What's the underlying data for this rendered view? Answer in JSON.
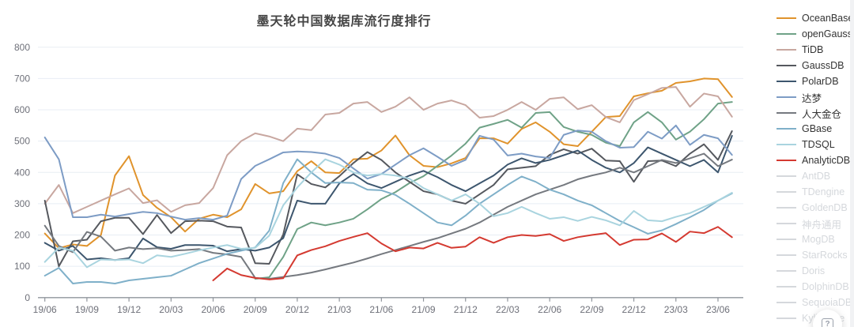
{
  "title": "墨天轮中国数据库流行度排行",
  "float_button": {
    "icon": "question-mark",
    "tooltip_glyph": "?"
  },
  "colors": {
    "grid": "#E8EDF4",
    "axis": "#8F949B",
    "tick_label": "#6E7079",
    "title": "#454545",
    "legend_active_text": "#333333",
    "legend_disabled": "#D5D8DC",
    "background": "#FFFFFF"
  },
  "legend": {
    "position": "right",
    "items": [
      {
        "label": "OceanBase",
        "color": "#E0932C",
        "active": true
      },
      {
        "label": "openGauss",
        "color": "#6FA287",
        "active": true
      },
      {
        "label": "TiDB",
        "color": "#C8A7A0",
        "active": true
      },
      {
        "label": "GaussDB",
        "color": "#55585E",
        "active": true
      },
      {
        "label": "PolarDB",
        "color": "#3D566E",
        "active": true
      },
      {
        "label": "达梦",
        "color": "#7D9CC5",
        "active": true
      },
      {
        "label": "人大金仓",
        "color": "#75797F",
        "active": true
      },
      {
        "label": "GBase",
        "color": "#7FB0C9",
        "active": true
      },
      {
        "label": "TDSQL",
        "color": "#A9D4DF",
        "active": true
      },
      {
        "label": "AnalyticDB",
        "color": "#D43A31",
        "active": true
      },
      {
        "label": "AntDB",
        "color": "#D5D8DC",
        "active": false
      },
      {
        "label": "TDengine",
        "color": "#D5D8DC",
        "active": false
      },
      {
        "label": "GoldenDB",
        "color": "#D5D8DC",
        "active": false
      },
      {
        "label": "神舟通用",
        "color": "#D5D8DC",
        "active": false
      },
      {
        "label": "MogDB",
        "color": "#D5D8DC",
        "active": false
      },
      {
        "label": "StarRocks",
        "color": "#D5D8DC",
        "active": false
      },
      {
        "label": "Doris",
        "color": "#D5D8DC",
        "active": false
      },
      {
        "label": "DolphinDB",
        "color": "#D5D8DC",
        "active": false
      },
      {
        "label": "SequoiaDB",
        "color": "#D5D8DC",
        "active": false
      },
      {
        "label": "Kyligence",
        "color": "#D5D8DC",
        "active": false
      }
    ]
  },
  "chart_data": {
    "type": "line",
    "title": "墨天轮中国数据库流行度排行",
    "xlabel": "",
    "ylabel": "",
    "ylim": [
      0,
      800
    ],
    "ytick_step": 100,
    "yticks": [
      0,
      100,
      200,
      300,
      400,
      500,
      600,
      700,
      800
    ],
    "grid": true,
    "legend_position": "right",
    "x_tick_labels_shown": [
      "19/06",
      "19/09",
      "19/12",
      "20/03",
      "20/06",
      "20/09",
      "20/12",
      "21/03",
      "21/06",
      "21/09",
      "21/12",
      "22/03",
      "22/06",
      "22/09",
      "22/12",
      "23/03",
      "23/06"
    ],
    "categories": [
      "19/06",
      "19/07",
      "19/08",
      "19/09",
      "19/10",
      "19/11",
      "19/12",
      "20/01",
      "20/02",
      "20/03",
      "20/04",
      "20/05",
      "20/06",
      "20/07",
      "20/08",
      "20/09",
      "20/10",
      "20/11",
      "20/12",
      "21/01",
      "21/02",
      "21/03",
      "21/04",
      "21/05",
      "21/06",
      "21/07",
      "21/08",
      "21/09",
      "21/10",
      "21/11",
      "21/12",
      "22/01",
      "22/02",
      "22/03",
      "22/04",
      "22/05",
      "22/06",
      "22/07",
      "22/08",
      "22/09",
      "22/10",
      "22/11",
      "22/12",
      "23/01",
      "23/02",
      "23/03",
      "23/04",
      "23/05",
      "23/06",
      "23/07"
    ],
    "series": [
      {
        "name": "OceanBase",
        "color": "#E0932C",
        "values": [
          205,
          158,
          170,
          165,
          200,
          390,
          452,
          328,
          287,
          257,
          211,
          252,
          265,
          257,
          282,
          363,
          333,
          340,
          404,
          436,
          400,
          398,
          442,
          444,
          470,
          518,
          455,
          421,
          417,
          429,
          446,
          509,
          509,
          492,
          539,
          560,
          530,
          490,
          484,
          530,
          577,
          580,
          643,
          653,
          661,
          686,
          691,
          700,
          698,
          641
        ]
      },
      {
        "name": "openGauss",
        "color": "#6FA287",
        "values": [
          null,
          null,
          null,
          null,
          null,
          null,
          null,
          null,
          null,
          null,
          null,
          null,
          null,
          null,
          null,
          60,
          65,
          130,
          219,
          240,
          231,
          240,
          252,
          282,
          315,
          337,
          366,
          388,
          421,
          454,
          492,
          543,
          555,
          568,
          543,
          590,
          593,
          545,
          530,
          520,
          495,
          484,
          560,
          593,
          560,
          505,
          530,
          570,
          620,
          625
        ]
      },
      {
        "name": "TiDB",
        "color": "#C8A7A0",
        "values": [
          300,
          360,
          270,
          290,
          310,
          330,
          349,
          302,
          311,
          274,
          295,
          302,
          350,
          455,
          500,
          525,
          515,
          500,
          540,
          535,
          585,
          590,
          620,
          625,
          593,
          610,
          640,
          600,
          620,
          630,
          615,
          575,
          580,
          600,
          625,
          600,
          635,
          640,
          602,
          615,
          577,
          560,
          631,
          650,
          670,
          673,
          610,
          652,
          643,
          578
        ]
      },
      {
        "name": "GaussDB",
        "color": "#55585E",
        "values": [
          310,
          100,
          180,
          185,
          244,
          255,
          255,
          203,
          264,
          206,
          244,
          246,
          244,
          227,
          224,
          110,
          108,
          202,
          394,
          363,
          352,
          388,
          430,
          465,
          440,
          400,
          370,
          340,
          330,
          310,
          300,
          330,
          360,
          410,
          415,
          420,
          456,
          474,
          460,
          476,
          438,
          436,
          370,
          436,
          438,
          420,
          460,
          490,
          440,
          532
        ]
      },
      {
        "name": "PolarDB",
        "color": "#3D566E",
        "values": [
          175,
          150,
          165,
          122,
          126,
          120,
          126,
          189,
          161,
          156,
          168,
          168,
          166,
          148,
          155,
          150,
          160,
          190,
          310,
          300,
          300,
          365,
          395,
          365,
          350,
          370,
          390,
          405,
          385,
          360,
          340,
          365,
          390,
          425,
          445,
          430,
          440,
          455,
          470,
          440,
          415,
          400,
          430,
          480,
          460,
          440,
          420,
          440,
          400,
          517
        ]
      },
      {
        "name": "达梦",
        "color": "#7D9CC5",
        "values": [
          512,
          442,
          257,
          257,
          265,
          259,
          267,
          274,
          270,
          259,
          249,
          254,
          249,
          262,
          379,
          421,
          442,
          464,
          467,
          465,
          460,
          446,
          413,
          380,
          395,
          425,
          455,
          477,
          450,
          421,
          440,
          517,
          505,
          454,
          460,
          451,
          446,
          520,
          534,
          530,
          500,
          479,
          481,
          530,
          508,
          550,
          488,
          520,
          509,
          456
        ]
      },
      {
        "name": "人大金仓",
        "color": "#75797F",
        "values": [
          230,
          165,
          145,
          210,
          195,
          150,
          160,
          155,
          158,
          150,
          152,
          155,
          143,
          138,
          130,
          63,
          60,
          66,
          72,
          80,
          90,
          101,
          112,
          125,
          139,
          152,
          165,
          178,
          190,
          205,
          220,
          240,
          265,
          290,
          310,
          330,
          345,
          360,
          378,
          390,
          400,
          415,
          400,
          420,
          440,
          430,
          445,
          460,
          420,
          441
        ]
      },
      {
        "name": "GBase",
        "color": "#7FB0C9",
        "values": [
          70,
          95,
          45,
          50,
          50,
          45,
          55,
          60,
          65,
          70,
          90,
          110,
          125,
          140,
          150,
          160,
          214,
          366,
          442,
          400,
          366,
          368,
          366,
          345,
          343,
          328,
          300,
          270,
          240,
          231,
          262,
          300,
          330,
          360,
          387,
          370,
          345,
          330,
          310,
          295,
          270,
          245,
          225,
          204,
          215,
          235,
          257,
          280,
          310,
          333
        ]
      },
      {
        "name": "TDSQL",
        "color": "#A9D4DF",
        "values": [
          114,
          160,
          150,
          97,
          122,
          120,
          122,
          110,
          135,
          130,
          140,
          151,
          160,
          168,
          156,
          159,
          198,
          295,
          352,
          400,
          442,
          425,
          400,
          390,
          395,
          390,
          380,
          350,
          330,
          310,
          330,
          300,
          260,
          270,
          290,
          270,
          252,
          257,
          245,
          258,
          247,
          231,
          277,
          247,
          244,
          258,
          270,
          290,
          310,
          335
        ]
      },
      {
        "name": "AnalyticDB",
        "color": "#D43A31",
        "values": [
          null,
          null,
          null,
          null,
          null,
          null,
          null,
          null,
          null,
          null,
          null,
          null,
          55,
          93,
          72,
          63,
          58,
          62,
          135,
          152,
          164,
          181,
          194,
          206,
          173,
          148,
          160,
          157,
          175,
          159,
          163,
          193,
          175,
          193,
          200,
          197,
          203,
          181,
          193,
          200,
          206,
          168,
          185,
          186,
          205,
          178,
          211,
          206,
          226,
          193
        ]
      }
    ]
  }
}
